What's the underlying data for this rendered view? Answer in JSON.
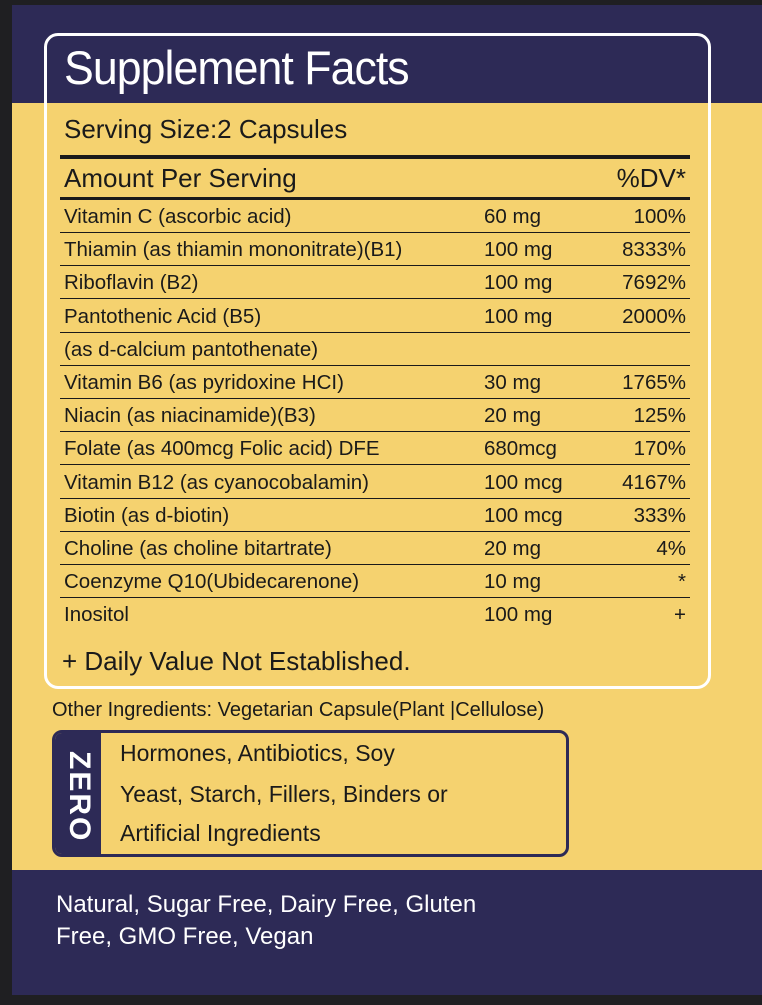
{
  "title": "Supplement Facts",
  "serving_size": "Serving Size:2 Capsules",
  "header": {
    "amount": "Amount Per Serving",
    "dv": "%DV*"
  },
  "rows": [
    {
      "name": "Vitamin C (ascorbic acid)",
      "amount": "60 mg",
      "dv": "100%"
    },
    {
      "name": "Thiamin (as thiamin mononitrate)(B1)",
      "amount": "100 mg",
      "dv": "8333%"
    },
    {
      "name": "Riboflavin (B2)",
      "amount": "100 mg",
      "dv": "7692%"
    },
    {
      "name": "Pantothenic Acid (B5)",
      "amount": "100 mg",
      "dv": "2000%"
    },
    {
      "name": "(as d-calcium pantothenate)",
      "amount": "",
      "dv": ""
    },
    {
      "name": "Vitamin B6 (as pyridoxine HCI)",
      "amount": "30 mg",
      "dv": "1765%"
    },
    {
      "name": "Niacin (as niacinamide)(B3)",
      "amount": "20 mg",
      "dv": "125%"
    },
    {
      "name": "Folate (as 400mcg Folic acid) DFE",
      "amount": "680mcg",
      "dv": "170%"
    },
    {
      "name": "Vitamin B12 (as cyanocobalamin)",
      "amount": "100 mcg",
      "dv": "4167%"
    },
    {
      "name": "Biotin (as d-biotin)",
      "amount": "100 mcg",
      "dv": "333%"
    },
    {
      "name": "Choline (as choline bitartrate)",
      "amount": "20 mg",
      "dv": "4%"
    },
    {
      "name": "Coenzyme Q10(Ubidecarenone)",
      "amount": "10 mg",
      "dv": "*"
    },
    {
      "name": "Inositol",
      "amount": "100 mg",
      "dv": "+"
    }
  ],
  "footnote": "+ Daily Value Not Established.",
  "other_ingredients": "Other Ingredients: Vegetarian Capsule(Plant |Cellulose)",
  "zero": {
    "label": "ZERO",
    "lines": [
      "Hormones, Antibiotics, Soy",
      "Yeast, Starch, Fillers, Binders or",
      "Artificial Ingredients"
    ]
  },
  "claims": [
    "Natural, Sugar Free, Dairy Free, Gluten",
    "Free, GMO Free, Vegan"
  ],
  "colors": {
    "navy": "#2d2a56",
    "yellow": "#f5d26f"
  }
}
